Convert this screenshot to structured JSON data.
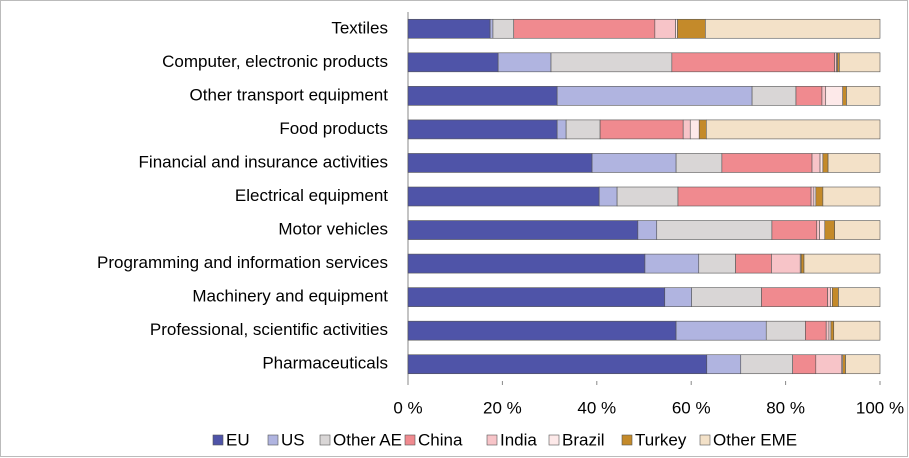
{
  "chart_data": {
    "type": "stacked_bar_horizontal",
    "categories": [
      "Textiles",
      "Computer, electronic products",
      "Other transport equipment",
      "Food products",
      "Financial and insurance activities",
      "Electrical equipment",
      "Motor vehicles",
      "Programming and information services",
      "Machinery and equipment",
      "Professional, scientific activities",
      "Pharmaceuticals"
    ],
    "series": [
      {
        "name": "EU",
        "color": "#4f54a8",
        "values": [
          17.4,
          19.1,
          31.6,
          31.6,
          39.0,
          40.5,
          48.7,
          50.2,
          54.4,
          56.8,
          63.3
        ]
      },
      {
        "name": "US",
        "color": "#b0b4e0",
        "values": [
          0.6,
          11.2,
          41.3,
          1.9,
          17.8,
          3.8,
          4.0,
          11.4,
          5.7,
          19.1,
          7.2
        ]
      },
      {
        "name": "Other AE",
        "color": "#d9d6d6",
        "values": [
          4.4,
          25.6,
          9.3,
          7.2,
          9.7,
          12.9,
          24.4,
          7.8,
          14.8,
          8.3,
          11.0
        ]
      },
      {
        "name": "China",
        "color": "#f08a8f",
        "values": [
          29.9,
          34.5,
          5.5,
          17.6,
          19.1,
          28.2,
          9.5,
          7.6,
          14.0,
          4.4,
          4.9
        ]
      },
      {
        "name": "India",
        "color": "#f7c4c8",
        "values": [
          4.4,
          0.4,
          0.8,
          1.5,
          1.7,
          0.6,
          0.6,
          6.1,
          0.6,
          0.6,
          5.5
        ]
      },
      {
        "name": "Brazil",
        "color": "#fde9e9",
        "values": [
          0.4,
          0.2,
          3.6,
          1.9,
          0.6,
          0.4,
          1.1,
          0.2,
          0.4,
          0.4,
          0.2
        ]
      },
      {
        "name": "Turkey",
        "color": "#c48a2a",
        "values": [
          5.9,
          0.4,
          0.8,
          1.5,
          1.1,
          1.5,
          2.1,
          0.6,
          1.3,
          0.6,
          0.6
        ]
      },
      {
        "name": "Other EME",
        "color": "#f3e1c8",
        "values": [
          37.0,
          8.6,
          7.1,
          36.8,
          11.0,
          12.1,
          9.6,
          16.1,
          8.8,
          9.8,
          7.3
        ]
      }
    ],
    "xlim": [
      0,
      100
    ],
    "xticks": [
      {
        "value": 0,
        "label": "0 %"
      },
      {
        "value": 20,
        "label": "20 %"
      },
      {
        "value": 40,
        "label": "40 %"
      },
      {
        "value": 60,
        "label": "60 %"
      },
      {
        "value": 80,
        "label": "80 %"
      },
      {
        "value": 100,
        "label": "100 %"
      }
    ],
    "legend": "bottom"
  }
}
